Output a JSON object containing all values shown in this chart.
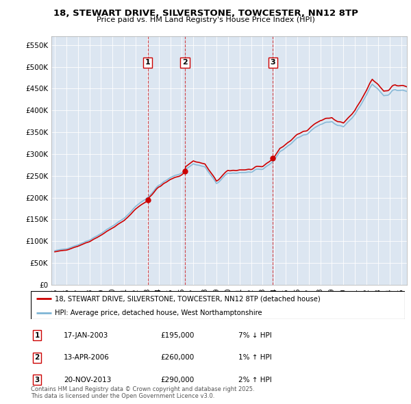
{
  "title": "18, STEWART DRIVE, SILVERSTONE, TOWCESTER, NN12 8TP",
  "subtitle": "Price paid vs. HM Land Registry's House Price Index (HPI)",
  "plot_bg_color": "#dce6f1",
  "ylim": [
    0,
    570000
  ],
  "yticks": [
    0,
    50000,
    100000,
    150000,
    200000,
    250000,
    300000,
    350000,
    400000,
    450000,
    500000,
    550000
  ],
  "ytick_labels": [
    "£0",
    "£50K",
    "£100K",
    "£150K",
    "£200K",
    "£250K",
    "£300K",
    "£350K",
    "£400K",
    "£450K",
    "£500K",
    "£550K"
  ],
  "sale_dates_num": [
    2003.04,
    2006.28,
    2013.89
  ],
  "sale_prices": [
    195000,
    260000,
    290000
  ],
  "sale_labels": [
    "1",
    "2",
    "3"
  ],
  "sale_info": [
    {
      "label": "1",
      "date": "17-JAN-2003",
      "price": "£195,000",
      "hpi": "7% ↓ HPI"
    },
    {
      "label": "2",
      "date": "13-APR-2006",
      "price": "£260,000",
      "hpi": "1% ↑ HPI"
    },
    {
      "label": "3",
      "date": "20-NOV-2013",
      "price": "£290,000",
      "hpi": "2% ↑ HPI"
    }
  ],
  "legend_line1": "18, STEWART DRIVE, SILVERSTONE, TOWCESTER, NN12 8TP (detached house)",
  "legend_line2": "HPI: Average price, detached house, West Northamptonshire",
  "footer": "Contains HM Land Registry data © Crown copyright and database right 2025.\nThis data is licensed under the Open Government Licence v3.0.",
  "hpi_color": "#7fb5d5",
  "price_color": "#cc0000",
  "vline_color": "#cc0000",
  "marker_box_color": "#cc0000",
  "start_year": 1995.0,
  "end_year": 2025.5
}
